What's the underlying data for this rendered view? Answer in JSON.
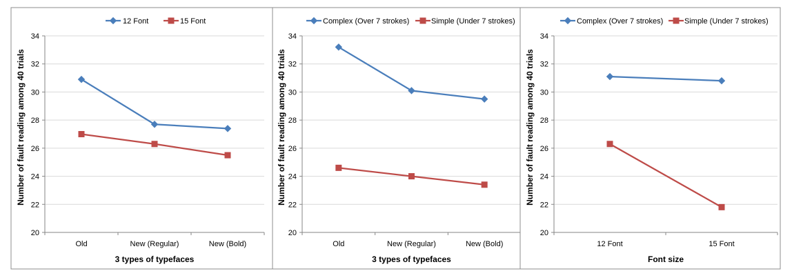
{
  "colors": {
    "blue": "#4a7ebb",
    "red": "#be4b48"
  },
  "chart_data": [
    {
      "type": "line",
      "categories": [
        "Old",
        "New (Regular)",
        "New (Bold)"
      ],
      "series": [
        {
          "name": "12 Font",
          "values": [
            30.9,
            27.7,
            27.4
          ],
          "color": "#4a7ebb",
          "marker": "diamond"
        },
        {
          "name": "15 Font",
          "values": [
            27.0,
            26.3,
            25.5
          ],
          "color": "#be4b48",
          "marker": "square"
        }
      ],
      "xlabel": "3 types of typefaces",
      "ylabel": "Number of fault reading among 40 trials",
      "ylim": [
        20,
        34
      ],
      "yticks": [
        20,
        22,
        24,
        26,
        28,
        30,
        32,
        34
      ],
      "grid": true,
      "legend": "top"
    },
    {
      "type": "line",
      "categories": [
        "Old",
        "New (Regular)",
        "New (Bold)"
      ],
      "series": [
        {
          "name": "Complex (Over 7 strokes)",
          "values": [
            33.2,
            30.1,
            29.5
          ],
          "color": "#4a7ebb",
          "marker": "diamond"
        },
        {
          "name": "Simple (Under 7 strokes)",
          "values": [
            24.6,
            24.0,
            23.4
          ],
          "color": "#be4b48",
          "marker": "square"
        }
      ],
      "xlabel": "3 types of typefaces",
      "ylabel": "Number of fault reading among 40 trials",
      "ylim": [
        20,
        34
      ],
      "yticks": [
        20,
        22,
        24,
        26,
        28,
        30,
        32,
        34
      ],
      "grid": true,
      "legend": "top"
    },
    {
      "type": "line",
      "categories": [
        "12 Font",
        "15 Font"
      ],
      "series": [
        {
          "name": "Complex (Over 7 strokes)",
          "values": [
            31.1,
            30.8
          ],
          "color": "#4a7ebb",
          "marker": "diamond"
        },
        {
          "name": "Simple (Under 7 strokes)",
          "values": [
            26.3,
            21.8
          ],
          "color": "#be4b48",
          "marker": "square"
        }
      ],
      "xlabel": "Font size",
      "ylabel": "Number of fault reading among 40 trials",
      "ylim": [
        20,
        34
      ],
      "yticks": [
        20,
        22,
        24,
        26,
        28,
        30,
        32,
        34
      ],
      "grid": true,
      "legend": "top"
    }
  ]
}
